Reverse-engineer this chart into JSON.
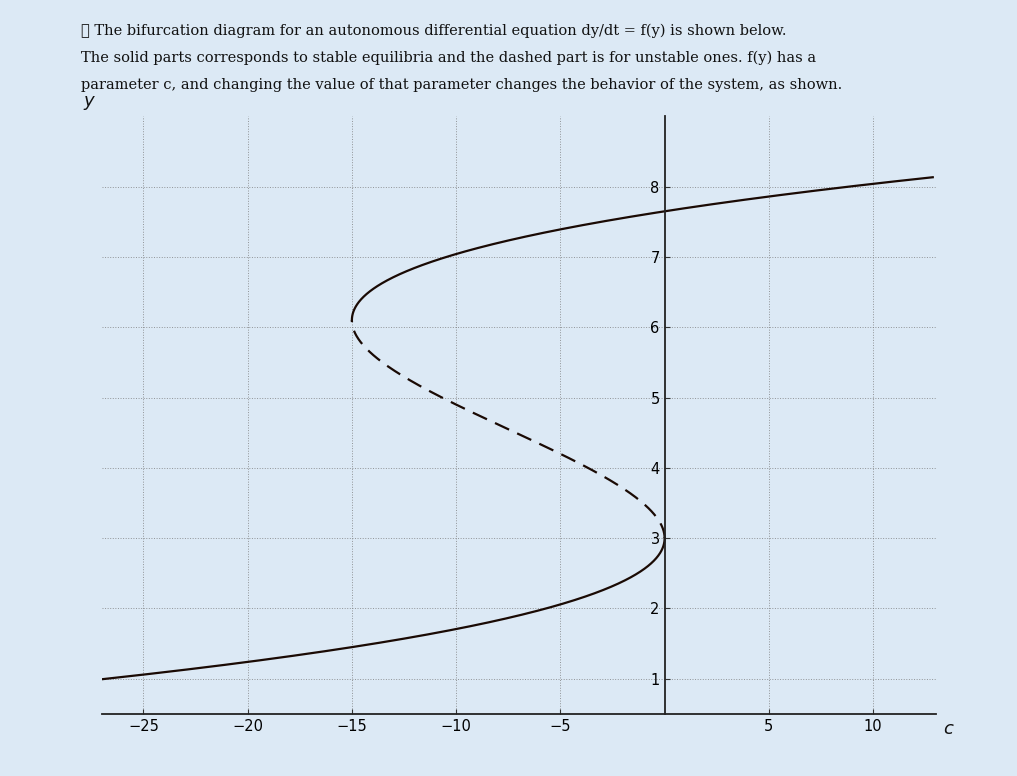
{
  "title_lines": [
    "Ⓐ The bifurcation diagram for an autonomous differential equation dy/dt = f(y) is shown below.",
    "The solid parts corresponds to stable equilibria and the dashed part is for unstable ones. f(y) has a",
    "parameter c, and changing the value of that parameter changes the behavior of the system, as shown."
  ],
  "xlabel": "c",
  "ylabel": "y",
  "xlim": [
    -27,
    13
  ],
  "ylim": [
    0.5,
    9.0
  ],
  "xticks": [
    -25,
    -20,
    -15,
    -10,
    -5,
    5,
    10
  ],
  "yticks": [
    1,
    2,
    3,
    4,
    5,
    6,
    7,
    8
  ],
  "bg_color": "#dce9f5",
  "line_color": "#1a0a04",
  "figsize": [
    10.17,
    7.76
  ],
  "dpi": 100,
  "y_mid": 4.55,
  "half_sep": 1.55,
  "fold_c_upper": -15.0,
  "fold_c_lower": 0.0,
  "y_upper_start": 0.7,
  "y_upper_end": 8.8,
  "lw": 1.6
}
